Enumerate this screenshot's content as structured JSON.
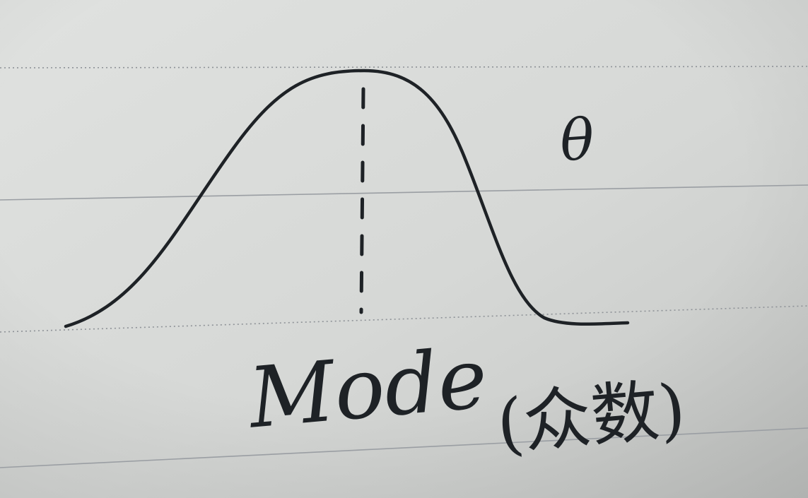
{
  "sketch": {
    "variable_symbol": "θ",
    "mode_label": "Mode",
    "mode_label_chinese": "(众数)"
  },
  "colors": {
    "paper": "#d9dbd9",
    "ink": "#1e2226",
    "rule_line": "#8e9297"
  }
}
